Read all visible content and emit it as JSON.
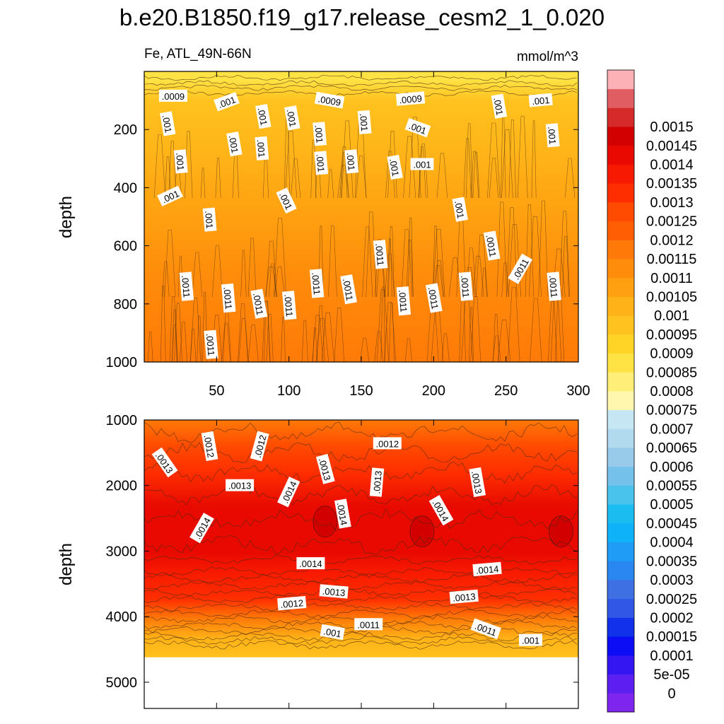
{
  "title": "b.e20.B1850.f19_g17.release_cesm2_1_0.020",
  "subtitle_left": "Fe, ATL_49N-66N",
  "subtitle_right": "mmol/m^3",
  "chart_data": [
    {
      "type": "heatmap",
      "panel": "upper",
      "ylabel": "depth",
      "xlim": [
        0,
        300
      ],
      "ylim": [
        1000,
        0
      ],
      "x_ticks": [
        50,
        100,
        150,
        200,
        250,
        300
      ],
      "y_ticks": [
        200,
        400,
        600,
        800,
        1000
      ],
      "depth_profile": [
        {
          "depth": 30,
          "value": 0.00085
        },
        {
          "depth": 100,
          "value": 0.00095
        },
        {
          "depth": 300,
          "value": 0.001
        },
        {
          "depth": 500,
          "value": 0.00105
        },
        {
          "depth": 700,
          "value": 0.0011
        },
        {
          "depth": 1000,
          "value": 0.00115
        }
      ],
      "contour_labels": [
        {
          "text": ".0009",
          "x": 20,
          "depth": 85,
          "angle": 0
        },
        {
          "text": ".001",
          "x": 57,
          "depth": 105,
          "angle": -20
        },
        {
          "text": ".001",
          "x": 82,
          "depth": 155,
          "angle": 80
        },
        {
          "text": ".001",
          "x": 102,
          "depth": 160,
          "angle": 80
        },
        {
          "text": ".0009",
          "x": 128,
          "depth": 100,
          "angle": 10
        },
        {
          "text": ".001",
          "x": 152,
          "depth": 175,
          "angle": 85
        },
        {
          "text": ".0009",
          "x": 184,
          "depth": 95,
          "angle": -5
        },
        {
          "text": ".001",
          "x": 245,
          "depth": 120,
          "angle": 80
        },
        {
          "text": ".001",
          "x": 274,
          "depth": 100,
          "angle": -5
        },
        {
          "text": ".001",
          "x": 16,
          "depth": 180,
          "angle": 80
        },
        {
          "text": ".001",
          "x": 121,
          "depth": 215,
          "angle": 85
        },
        {
          "text": ".001",
          "x": 189,
          "depth": 195,
          "angle": 20
        },
        {
          "text": ".001",
          "x": 282,
          "depth": 220,
          "angle": 85
        },
        {
          "text": ".001",
          "x": 62,
          "depth": 250,
          "angle": 80
        },
        {
          "text": ".001",
          "x": 81,
          "depth": 265,
          "angle": 85
        },
        {
          "text": ".001",
          "x": 25,
          "depth": 310,
          "angle": 85
        },
        {
          "text": ".001",
          "x": 122,
          "depth": 315,
          "angle": 85
        },
        {
          "text": ".001",
          "x": 143,
          "depth": 310,
          "angle": 85
        },
        {
          "text": ".001",
          "x": 173,
          "depth": 330,
          "angle": 80
        },
        {
          "text": ".001",
          "x": 192,
          "depth": 320,
          "angle": 0
        },
        {
          "text": ".001",
          "x": 18,
          "depth": 430,
          "angle": -25
        },
        {
          "text": ".001",
          "x": 98,
          "depth": 445,
          "angle": 65
        },
        {
          "text": ".001",
          "x": 45,
          "depth": 510,
          "angle": 85
        },
        {
          "text": ".001",
          "x": 218,
          "depth": 475,
          "angle": 80
        },
        {
          "text": ".0011",
          "x": 240,
          "depth": 600,
          "angle": 80
        },
        {
          "text": ".0011",
          "x": 163,
          "depth": 630,
          "angle": 85
        },
        {
          "text": ".0011",
          "x": 260,
          "depth": 680,
          "angle": -60
        },
        {
          "text": ".0011",
          "x": 29,
          "depth": 740,
          "angle": 85
        },
        {
          "text": ".0011",
          "x": 119,
          "depth": 730,
          "angle": 85
        },
        {
          "text": ".0011",
          "x": 141,
          "depth": 750,
          "angle": 80
        },
        {
          "text": ".0011",
          "x": 222,
          "depth": 740,
          "angle": 85
        },
        {
          "text": ".0011",
          "x": 283,
          "depth": 740,
          "angle": 85
        },
        {
          "text": ".0011",
          "x": 58,
          "depth": 780,
          "angle": 85
        },
        {
          "text": ".0011",
          "x": 79,
          "depth": 800,
          "angle": 80
        },
        {
          "text": ".0011",
          "x": 100,
          "depth": 805,
          "angle": 85
        },
        {
          "text": ".0011",
          "x": 179,
          "depth": 790,
          "angle": 85
        },
        {
          "text": ".0011",
          "x": 200,
          "depth": 780,
          "angle": 80
        },
        {
          "text": ".0011",
          "x": 46,
          "depth": 940,
          "angle": 85
        }
      ]
    },
    {
      "type": "heatmap",
      "panel": "lower",
      "ylabel": "depth",
      "xlim": [
        0,
        300
      ],
      "ylim": [
        5400,
        1000
      ],
      "y_ticks": [
        1000,
        2000,
        3000,
        4000,
        5000
      ],
      "ocean_floor_depth": 4620,
      "depth_profile": [
        {
          "depth": 1000,
          "value": 0.00115
        },
        {
          "depth": 1400,
          "value": 0.00125
        },
        {
          "depth": 1800,
          "value": 0.0013
        },
        {
          "depth": 2300,
          "value": 0.0014
        },
        {
          "depth": 3000,
          "value": 0.0014
        },
        {
          "depth": 3300,
          "value": 0.00135
        },
        {
          "depth": 3700,
          "value": 0.0013
        },
        {
          "depth": 4000,
          "value": 0.00115
        },
        {
          "depth": 4300,
          "value": 0.001
        },
        {
          "depth": 4600,
          "value": 0.00095
        }
      ],
      "high_patches": [
        {
          "x": 125,
          "depth": 2550,
          "value": 0.00145
        },
        {
          "x": 192,
          "depth": 2700,
          "value": 0.00145
        },
        {
          "x": 288,
          "depth": 2700,
          "value": 0.00145
        }
      ],
      "contour_labels": [
        {
          "text": ".0013",
          "x": 14,
          "depth": 1650,
          "angle": 55
        },
        {
          "text": ".0012",
          "x": 45,
          "depth": 1400,
          "angle": 80
        },
        {
          "text": ".0012",
          "x": 80,
          "depth": 1400,
          "angle": -75
        },
        {
          "text": ".0012",
          "x": 168,
          "depth": 1360,
          "angle": 0
        },
        {
          "text": ".0013",
          "x": 125,
          "depth": 1750,
          "angle": 75
        },
        {
          "text": ".0013",
          "x": 161,
          "depth": 1950,
          "angle": -85
        },
        {
          "text": ".0013",
          "x": 230,
          "depth": 1950,
          "angle": 80
        },
        {
          "text": ".0013",
          "x": 66,
          "depth": 2000,
          "angle": 0
        },
        {
          "text": ".0014",
          "x": 100,
          "depth": 2100,
          "angle": -65
        },
        {
          "text": ".0014",
          "x": 137,
          "depth": 2430,
          "angle": 80
        },
        {
          "text": ".0014",
          "x": 205,
          "depth": 2380,
          "angle": 60
        },
        {
          "text": ".0014",
          "x": 40,
          "depth": 2650,
          "angle": -60
        },
        {
          "text": ".0014",
          "x": 115,
          "depth": 3190,
          "angle": 0
        },
        {
          "text": ".0014",
          "x": 237,
          "depth": 3280,
          "angle": -5
        },
        {
          "text": ".0013",
          "x": 131,
          "depth": 3620,
          "angle": 5
        },
        {
          "text": ".0013",
          "x": 221,
          "depth": 3700,
          "angle": -5
        },
        {
          "text": ".0012",
          "x": 102,
          "depth": 3800,
          "angle": -5
        },
        {
          "text": ".0011",
          "x": 155,
          "depth": 4120,
          "angle": 0
        },
        {
          "text": ".0011",
          "x": 236,
          "depth": 4190,
          "angle": 20
        },
        {
          "text": ".001",
          "x": 130,
          "depth": 4240,
          "angle": 10
        },
        {
          "text": ".001",
          "x": 267,
          "depth": 4360,
          "angle": 0
        }
      ]
    }
  ],
  "colorbar": {
    "colors": [
      "#7F26EE",
      "#5B1FF0",
      "#3416F2",
      "#0D0DF5",
      "#1032EB",
      "#2F58E6",
      "#3E6FE3",
      "#2A86F1",
      "#1F9CF5",
      "#0EB2F8",
      "#1BBDF0",
      "#4AC3EC",
      "#74C2EC",
      "#98CBEA",
      "#B1DAEE",
      "#C7E6F4",
      "#FFF7AE",
      "#FFEE78",
      "#FFE244",
      "#FFD427",
      "#FFC21E",
      "#FFB217",
      "#FFA010",
      "#FF8C0A",
      "#FF7A08",
      "#FF5E05",
      "#FF4A00",
      "#FF2E00",
      "#F81A00",
      "#E80A00",
      "#D30000",
      "#D42A2A",
      "#E05E62",
      "#FBB1B6"
    ],
    "labels": [
      "0",
      "5e-05",
      "0.0001",
      "0.00015",
      "0.0002",
      "0.00025",
      "0.0003",
      "0.00035",
      "0.0004",
      "0.00045",
      "0.0005",
      "0.00055",
      "0.0006",
      "0.00065",
      "0.0007",
      "0.00075",
      "0.0008",
      "0.00085",
      "0.0009",
      "0.00095",
      "0.001",
      "0.00105",
      "0.0011",
      "0.00115",
      "0.0012",
      "0.00125",
      "0.0013",
      "0.00135",
      "0.0014",
      "0.00145",
      "0.0015"
    ]
  }
}
